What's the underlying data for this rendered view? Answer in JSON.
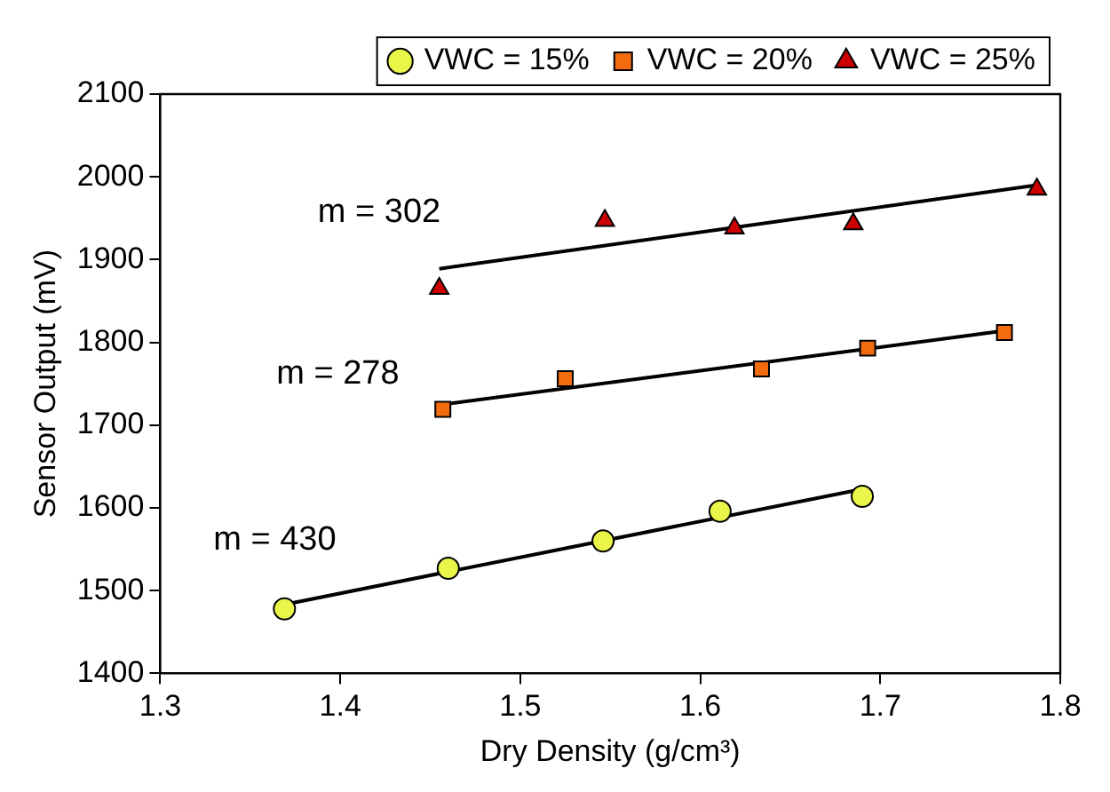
{
  "chart_data": {
    "type": "scatter",
    "xlabel": "Dry Density (g/cm³)",
    "ylabel": "Sensor Output (mV)",
    "xlim": [
      1.3,
      1.8
    ],
    "xticks": [
      1.3,
      1.4,
      1.5,
      1.6,
      1.7,
      1.8
    ],
    "ylim": [
      1400,
      2100
    ],
    "yticks": [
      1400,
      1500,
      1600,
      1700,
      1800,
      1900,
      2000,
      2100
    ],
    "grid": false,
    "legend": "top",
    "series": [
      {
        "name": "VWC = 15%",
        "color": "#eaf54a",
        "marker": "circle",
        "x": [
          1.369,
          1.46,
          1.546,
          1.611,
          1.69
        ],
        "values": [
          1478,
          1527,
          1560,
          1596,
          1614
        ]
      },
      {
        "name": "VWC = 20%",
        "color": "#f26b0f",
        "marker": "square",
        "x": [
          1.457,
          1.525,
          1.634,
          1.693,
          1.769
        ],
        "values": [
          1719,
          1756,
          1768,
          1793,
          1812
        ]
      },
      {
        "name": "VWC = 25%",
        "color": "#cc0000",
        "marker": "triangle",
        "x": [
          1.455,
          1.547,
          1.619,
          1.685,
          1.787
        ],
        "values": [
          1865,
          1947,
          1938,
          1943,
          1985
        ]
      },
      {
        "type": "line",
        "color": "#000000",
        "marker": "none",
        "x": [
          1.373,
          1.686
        ],
        "values": [
          1485,
          1621
        ]
      },
      {
        "type": "line",
        "color": "#000000",
        "marker": "none",
        "x": [
          1.457,
          1.769
        ],
        "values": [
          1725,
          1814
        ]
      },
      {
        "type": "line",
        "color": "#000000",
        "marker": "none",
        "x": [
          1.455,
          1.787
        ],
        "values": [
          1889,
          1990
        ]
      }
    ],
    "annotations": [
      "m = 302",
      "m = 278",
      "m = 430"
    ]
  }
}
